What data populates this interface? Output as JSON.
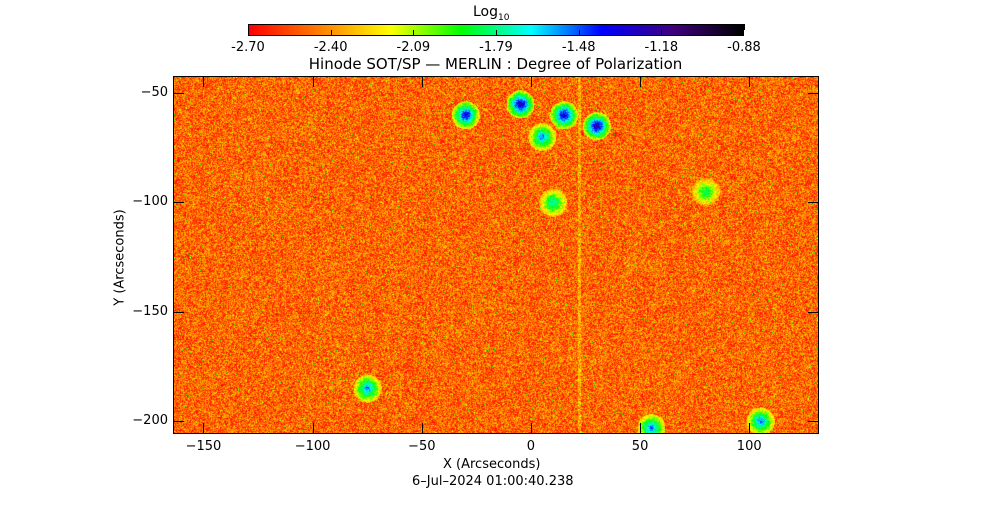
{
  "colorbar": {
    "label": "Log",
    "label_subscript": "10",
    "ticks": [
      "-2.70",
      "-2.40",
      "-2.09",
      "-1.79",
      "-1.48",
      "-1.18",
      "-0.88"
    ],
    "range": [
      -2.7,
      -0.88
    ],
    "colormap": [
      "#ff0000",
      "#ff8000",
      "#ffff00",
      "#00ff00",
      "#00ffff",
      "#0000ff",
      "#400080",
      "#000000"
    ]
  },
  "chart_data": {
    "type": "heatmap",
    "title": "Hinode SOT/SP — MERLIN : Degree of Polarization",
    "xlabel": "X (Arcseconds)",
    "ylabel": "Y (Arcseconds)",
    "xlim": [
      -163.5,
      131.5
    ],
    "ylim": [
      -205.5,
      -42.7
    ],
    "xticks": [
      -150,
      -100,
      -50,
      0,
      50,
      100
    ],
    "yticks": [
      -50,
      -100,
      -150,
      -200
    ],
    "xtick_labels": [
      "−150",
      "−100",
      "−50",
      "0",
      "50",
      "100"
    ],
    "ytick_labels": [
      "−50",
      "−100",
      "−150",
      "−200"
    ],
    "value_description": "log10 degree of polarization; mostly -2.7 to -2.3 background with concentrations up to ~-1.2 near (0,-60)",
    "hotspots": [
      {
        "x": -30,
        "y": -60,
        "v": -1.3
      },
      {
        "x": -5,
        "y": -55,
        "v": -1.2
      },
      {
        "x": 15,
        "y": -60,
        "v": -1.25
      },
      {
        "x": 30,
        "y": -65,
        "v": -1.2
      },
      {
        "x": 5,
        "y": -70,
        "v": -1.5
      },
      {
        "x": -75,
        "y": -185,
        "v": -1.5
      },
      {
        "x": 55,
        "y": -203,
        "v": -1.5
      },
      {
        "x": 105,
        "y": -200,
        "v": -1.5
      },
      {
        "x": 10,
        "y": -100,
        "v": -1.7
      },
      {
        "x": 80,
        "y": -95,
        "v": -1.8
      }
    ]
  },
  "footer": {
    "timestamp": "6–Jul–2024 01:00:40.238"
  }
}
